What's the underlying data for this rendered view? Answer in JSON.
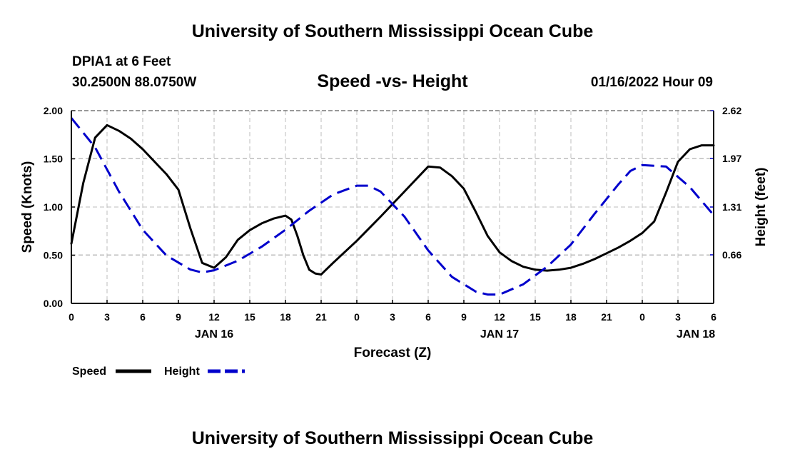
{
  "header": {
    "main_title": "University of Southern Mississippi Ocean Cube",
    "station_name": "DPIA1 at 6 Feet",
    "station_coords": "30.2500N  88.0750W",
    "chart_title": "Speed -vs- Height",
    "date": "01/16/2022 Hour 09"
  },
  "footer": {
    "title": "University of Southern Mississippi Ocean Cube"
  },
  "chart_data": {
    "type": "line",
    "title": "Speed -vs- Height",
    "xlabel": "Forecast (Z)",
    "ylabel": "Speed (Knots)",
    "y2label": "Height (feet)",
    "ylim": [
      0,
      2.0
    ],
    "y2lim": [
      0,
      2.62
    ],
    "xlim": [
      0,
      54
    ],
    "x_tick_hours": [
      0,
      3,
      6,
      9,
      12,
      15,
      18,
      21,
      24,
      27,
      30,
      33,
      36,
      39,
      42,
      45,
      48,
      51,
      54
    ],
    "x_tick_labels": [
      "0",
      "3",
      "6",
      "9",
      "12",
      "15",
      "18",
      "21",
      "0",
      "3",
      "6",
      "9",
      "12",
      "15",
      "18",
      "21",
      "0",
      "3",
      "6"
    ],
    "date_labels": [
      {
        "hour": 12,
        "label": "JAN 16"
      },
      {
        "hour": 36,
        "label": "JAN 17"
      },
      {
        "hour": 52.5,
        "label": "JAN 18"
      }
    ],
    "y_ticks": [
      0,
      0.5,
      1.0,
      1.5,
      2.0
    ],
    "y_tick_labels": [
      "0.00",
      "0.50",
      "1.00",
      "1.50",
      "2.00"
    ],
    "y2_ticks": [
      0.66,
      1.31,
      1.97,
      2.62
    ],
    "y2_tick_labels": [
      "0.66",
      "1.31",
      "1.97",
      "2.62"
    ],
    "grid": true,
    "legend_position": "bottom-left",
    "series": [
      {
        "name": "Speed",
        "axis": "left",
        "color": "#000000",
        "style": "solid",
        "x": [
          0,
          1,
          2,
          3,
          4,
          5,
          6,
          7,
          8,
          9,
          10,
          11,
          12,
          13,
          14,
          15,
          16,
          17,
          18,
          18.5,
          19,
          19.5,
          20,
          20.5,
          21,
          22,
          24,
          26,
          28,
          30,
          31,
          32,
          33,
          34,
          35,
          36,
          37,
          38,
          39,
          40,
          41,
          42,
          43,
          44,
          45,
          46,
          47,
          48,
          49,
          50,
          51,
          52,
          53,
          54
        ],
        "values": [
          0.62,
          1.25,
          1.72,
          1.85,
          1.79,
          1.71,
          1.6,
          1.47,
          1.34,
          1.18,
          0.78,
          0.42,
          0.37,
          0.48,
          0.66,
          0.76,
          0.83,
          0.88,
          0.91,
          0.87,
          0.7,
          0.5,
          0.35,
          0.31,
          0.3,
          0.42,
          0.65,
          0.9,
          1.16,
          1.42,
          1.41,
          1.32,
          1.19,
          0.95,
          0.7,
          0.53,
          0.44,
          0.38,
          0.35,
          0.34,
          0.35,
          0.37,
          0.41,
          0.46,
          0.52,
          0.58,
          0.65,
          0.73,
          0.85,
          1.15,
          1.47,
          1.6,
          1.64,
          1.64
        ]
      },
      {
        "name": "Height",
        "axis": "right",
        "color": "#0000cc",
        "style": "dashed",
        "x": [
          0,
          2,
          4,
          6,
          8,
          10,
          11,
          12,
          14,
          16,
          18,
          20,
          22,
          24,
          25,
          26,
          28,
          30,
          32,
          34,
          35,
          36,
          38,
          40,
          42,
          44,
          46,
          47,
          48,
          50,
          52,
          54
        ],
        "values": [
          2.52,
          2.12,
          1.52,
          1.0,
          0.65,
          0.46,
          0.42,
          0.45,
          0.58,
          0.77,
          1.0,
          1.26,
          1.48,
          1.6,
          1.6,
          1.52,
          1.18,
          0.72,
          0.36,
          0.16,
          0.12,
          0.12,
          0.26,
          0.5,
          0.8,
          1.22,
          1.62,
          1.8,
          1.88,
          1.86,
          1.58,
          1.2
        ]
      }
    ]
  }
}
